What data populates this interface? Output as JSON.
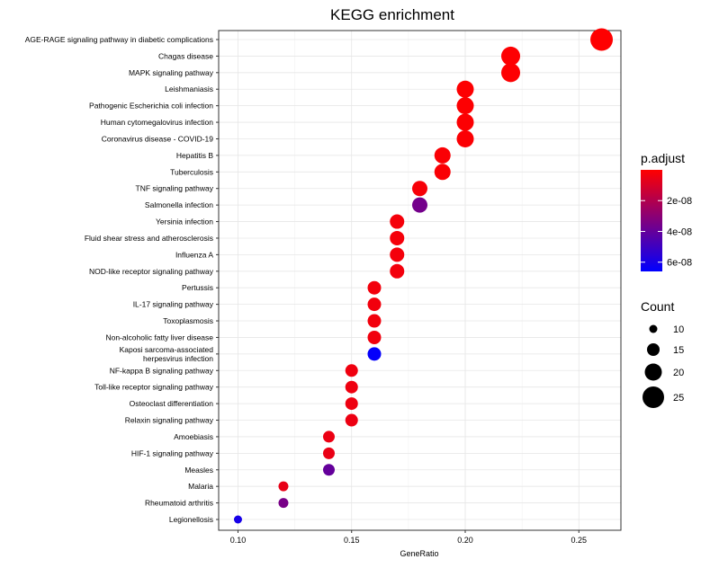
{
  "chart_data": {
    "type": "scatter",
    "title": "KEGG enrichment",
    "xlabel": "GeneRatio",
    "ylabel": "",
    "xlim": [
      0.0915,
      0.2685
    ],
    "xticks": [
      0.1,
      0.15,
      0.2,
      0.25
    ],
    "xtick_labels": [
      "0.10",
      "0.15",
      "0.20",
      "0.25"
    ],
    "grid": true,
    "legend_position": "right",
    "color_legend": {
      "title": "p.adjust",
      "low_color": "#ff0000",
      "high_color": "#0000ff",
      "range": [
        0,
        6.6e-08
      ],
      "ticks": [
        2e-08,
        4e-08,
        6e-08
      ],
      "tick_labels": [
        "2e-08",
        "4e-08",
        "6e-08"
      ]
    },
    "size_legend": {
      "title": "Count",
      "values": [
        10,
        15,
        20,
        25
      ],
      "labels": [
        "10",
        "15",
        "20",
        "25"
      ]
    },
    "categories": [
      "AGE-RAGE signaling pathway in diabetic complications",
      "Chagas disease",
      "MAPK signaling pathway",
      "Leishmaniasis",
      "Pathogenic Escherichia coli infection",
      "Human cytomegalovirus infection",
      "Coronavirus disease - COVID-19",
      "Hepatitis B",
      "Tuberculosis",
      "TNF signaling pathway",
      "Salmonella infection",
      "Yersinia infection",
      "Fluid shear stress and atherosclerosis",
      "Influenza A",
      "NOD-like receptor signaling pathway",
      "Pertussis",
      "IL-17 signaling pathway",
      "Toxoplasmosis",
      "Non-alcoholic fatty liver disease",
      "Kaposi sarcoma-associated herpesvirus infection",
      "NF-kappa B signaling pathway",
      "Toll-like receptor signaling pathway",
      "Osteoclast differentiation",
      "Relaxin signaling pathway",
      "Amoebiasis",
      "HIF-1 signaling pathway",
      "Measles",
      "Malaria",
      "Rheumatoid arthritis",
      "Legionellosis"
    ],
    "gene_ratio": [
      0.26,
      0.22,
      0.22,
      0.2,
      0.2,
      0.2,
      0.2,
      0.19,
      0.19,
      0.18,
      0.18,
      0.17,
      0.17,
      0.17,
      0.17,
      0.16,
      0.16,
      0.16,
      0.16,
      0.16,
      0.15,
      0.15,
      0.15,
      0.15,
      0.14,
      0.14,
      0.14,
      0.12,
      0.12,
      0.1
    ],
    "count": [
      26,
      22,
      22,
      20,
      20,
      20,
      20,
      19,
      19,
      18,
      18,
      17,
      17,
      17,
      17,
      16,
      16,
      16,
      16,
      16,
      15,
      15,
      15,
      15,
      14,
      14,
      14,
      12,
      12,
      10
    ],
    "p_adjust": [
      2e-10,
      4e-10,
      4e-10,
      6e-10,
      6e-10,
      8e-10,
      1e-09,
      1.2e-09,
      1.3e-09,
      2e-09,
      3.6e-08,
      2.5e-09,
      2.6e-09,
      2.8e-09,
      3e-09,
      3.2e-09,
      3.3e-09,
      3.4e-09,
      3.5e-09,
      6.5e-08,
      4e-09,
      4.2e-09,
      4.4e-09,
      4.6e-09,
      5e-09,
      5.5e-09,
      4e-08,
      6e-09,
      3.5e-08,
      6e-08
    ]
  }
}
